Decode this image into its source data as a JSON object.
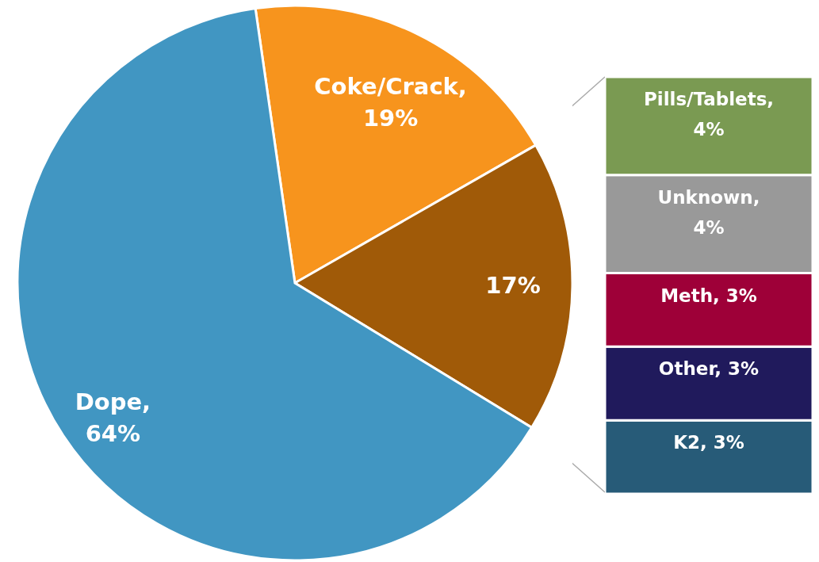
{
  "chart_data": [
    {
      "type": "pie",
      "categories": [
        null,
        null,
        null
      ],
      "values": [
        19,
        17,
        64
      ],
      "colors": [
        "#f7941d",
        "#a05a08",
        "#4196c2"
      ],
      "value_labels": [
        "Coke/Crack, 19%",
        "17%",
        "Dope, 64%"
      ]
    },
    {
      "type": "bar",
      "stacked": true,
      "categories": [
        null
      ],
      "series": [
        {
          "color": "#275b78",
          "values": [
            3
          ],
          "value_labels": [
            "K2, 3%"
          ]
        },
        {
          "color": "#201a5c",
          "values": [
            3
          ],
          "value_labels": [
            "Other, 3%"
          ]
        },
        {
          "color": "#9e0038",
          "values": [
            3
          ],
          "value_labels": [
            "Meth, 3%"
          ]
        },
        {
          "color": "#999999",
          "values": [
            4
          ],
          "value_labels": [
            "Unknown, 4%"
          ]
        },
        {
          "color": "#7a9a52",
          "values": [
            4
          ],
          "value_labels": [
            "Pills/Tablets, 4%"
          ]
        }
      ]
    }
  ]
}
